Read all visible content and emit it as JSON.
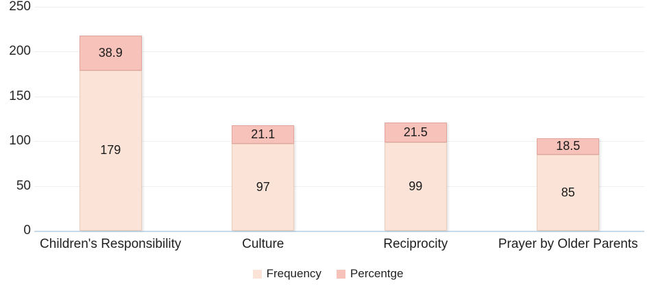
{
  "chart_data": {
    "type": "bar",
    "stacked": true,
    "title": "",
    "xlabel": "",
    "ylabel": "",
    "categories": [
      "Children's Responsibility",
      "Culture",
      "Reciprocity",
      "Prayer by Older Parents"
    ],
    "series": [
      {
        "name": "Frequency",
        "values": [
          179,
          97,
          99,
          85
        ],
        "fill": "#fbe3d7",
        "border": "#e9cbbc"
      },
      {
        "name": "Percentge",
        "values": [
          38.9,
          21.1,
          21.5,
          18.5
        ],
        "fill": "#f6c2ba",
        "border": "#e0a49c"
      }
    ],
    "ylim": [
      0,
      250
    ],
    "yticks": [
      0,
      50,
      100,
      150,
      200,
      250
    ],
    "grid": true,
    "legend_position": "bottom"
  },
  "styles": {
    "gridline_color": "#f1efee",
    "axis_line_color": "#c6daea",
    "text_color": "#1f1f1f",
    "background": "#ffffff"
  }
}
